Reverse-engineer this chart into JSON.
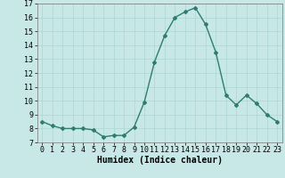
{
  "x": [
    0,
    1,
    2,
    3,
    4,
    5,
    6,
    7,
    8,
    9,
    10,
    11,
    12,
    13,
    14,
    15,
    16,
    17,
    18,
    19,
    20,
    21,
    22,
    23
  ],
  "y": [
    8.5,
    8.2,
    8.0,
    8.0,
    8.0,
    7.9,
    7.4,
    7.5,
    7.5,
    8.1,
    9.9,
    12.8,
    14.7,
    16.0,
    16.4,
    16.7,
    15.5,
    13.5,
    10.4,
    9.7,
    10.4,
    9.8,
    9.0,
    8.5
  ],
  "line_color": "#2e7d6e",
  "marker": "D",
  "marker_size": 2,
  "line_width": 1.0,
  "bg_color": "#c8e8e8",
  "grid_color": "#aed4d4",
  "xlabel": "Humidex (Indice chaleur)",
  "xlabel_fontsize": 7,
  "tick_fontsize": 6,
  "xlim": [
    -0.5,
    23.5
  ],
  "ylim": [
    7,
    17
  ],
  "yticks": [
    7,
    8,
    9,
    10,
    11,
    12,
    13,
    14,
    15,
    16,
    17
  ],
  "xticks": [
    0,
    1,
    2,
    3,
    4,
    5,
    6,
    7,
    8,
    9,
    10,
    11,
    12,
    13,
    14,
    15,
    16,
    17,
    18,
    19,
    20,
    21,
    22,
    23
  ]
}
